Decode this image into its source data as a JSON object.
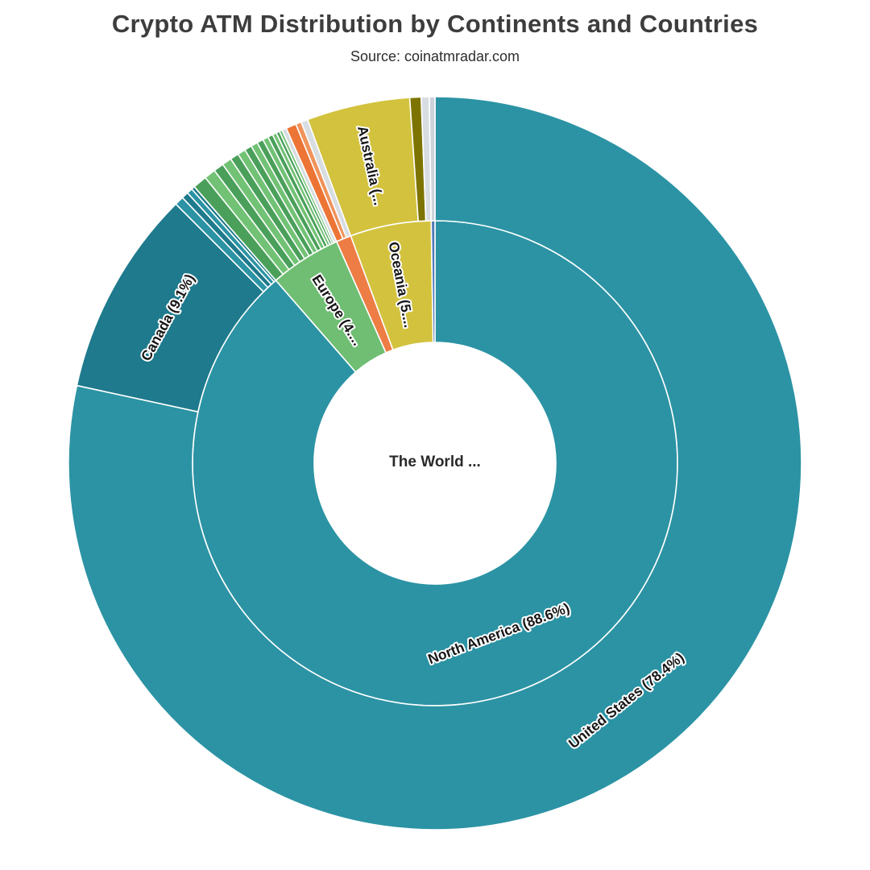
{
  "header": {
    "title": "Crypto ATM Distribution by Continents and Countries",
    "subtitle": "Source: coinatmradar.com"
  },
  "chart_data": {
    "type": "sunburst",
    "units": "percent",
    "angle_origin": "12-o-clock, clockwise",
    "rings": [
      "continents",
      "countries"
    ],
    "center_label": "The World ...",
    "title": "Crypto ATM Distribution by Continents and Countries",
    "subtitle": "Source: coinatmradar.com",
    "stroke_color": "#ffffff",
    "nodes": [
      {
        "label": "North America (88.6%)",
        "value": 88.6,
        "color": "#2b93a4",
        "label_mode": "tangent",
        "children": [
          {
            "label": "United States (78.4%)",
            "value": 78.4,
            "color": "#2b93a4",
            "label_mode": "tangent"
          },
          {
            "label": "Canada (9.1%)",
            "value": 9.1,
            "color": "#1e7a8c",
            "label_mode": "tangent"
          },
          {
            "label": "",
            "value": 0.4,
            "color": "#2b93a4",
            "label_mode": "none"
          },
          {
            "label": "",
            "value": 0.3,
            "color": "#1e7a8c",
            "label_mode": "none"
          },
          {
            "label": "",
            "value": 0.25,
            "color": "#2b93a4",
            "label_mode": "none"
          },
          {
            "label": "",
            "value": 0.15,
            "color": "#1e7a8c",
            "label_mode": "none"
          }
        ]
      },
      {
        "label": "Europe (4....",
        "value": 4.75,
        "color": "#6fbe73",
        "label_mode": "radial",
        "children": [
          {
            "label": "",
            "value": 0.62,
            "color": "#4aa05a",
            "label_mode": "none"
          },
          {
            "label": "",
            "value": 0.5,
            "color": "#72c275",
            "label_mode": "none"
          },
          {
            "label": "",
            "value": 0.45,
            "color": "#4aa05a",
            "label_mode": "none"
          },
          {
            "label": "",
            "value": 0.42,
            "color": "#72c275",
            "label_mode": "none"
          },
          {
            "label": "",
            "value": 0.38,
            "color": "#4aa05a",
            "label_mode": "none"
          },
          {
            "label": "",
            "value": 0.35,
            "color": "#72c275",
            "label_mode": "none"
          },
          {
            "label": "",
            "value": 0.32,
            "color": "#4aa05a",
            "label_mode": "none"
          },
          {
            "label": "",
            "value": 0.3,
            "color": "#72c275",
            "label_mode": "none"
          },
          {
            "label": "",
            "value": 0.28,
            "color": "#4aa05a",
            "label_mode": "none"
          },
          {
            "label": "",
            "value": 0.25,
            "color": "#72c275",
            "label_mode": "none"
          },
          {
            "label": "",
            "value": 0.22,
            "color": "#4aa05a",
            "label_mode": "none"
          },
          {
            "label": "",
            "value": 0.18,
            "color": "#72c275",
            "label_mode": "none"
          },
          {
            "label": "",
            "value": 0.15,
            "color": "#4aa05a",
            "label_mode": "none"
          },
          {
            "label": "",
            "value": 0.13,
            "color": "#72c275",
            "label_mode": "none"
          },
          {
            "label": "",
            "value": 0.2,
            "color": "#d8dde1",
            "label_mode": "none"
          }
        ]
      },
      {
        "label": "",
        "value": 1.0,
        "color": "#ed7d45",
        "label_mode": "none",
        "children": [
          {
            "label": "",
            "value": 0.45,
            "color": "#ec7434",
            "label_mode": "none"
          },
          {
            "label": "",
            "value": 0.25,
            "color": "#f0935a",
            "label_mode": "none"
          },
          {
            "label": "",
            "value": 0.3,
            "color": "#d8dde1",
            "label_mode": "none"
          }
        ]
      },
      {
        "label": "Oceania (5....",
        "value": 5.4,
        "color": "#d3c23e",
        "label_mode": "radial",
        "children": [
          {
            "label": "Australia (...",
            "value": 4.55,
            "color": "#d3c23e",
            "label_mode": "radial"
          },
          {
            "label": "",
            "value": 0.5,
            "color": "#7d7400",
            "label_mode": "none"
          },
          {
            "label": "",
            "value": 0.35,
            "color": "#d8dde1",
            "label_mode": "none"
          }
        ]
      },
      {
        "label": "",
        "value": 0.25,
        "color": "#4e79b7",
        "label_mode": "none",
        "children": [
          {
            "label": "",
            "value": 0.25,
            "color": "#ccd3dc",
            "label_mode": "none"
          }
        ]
      }
    ]
  }
}
